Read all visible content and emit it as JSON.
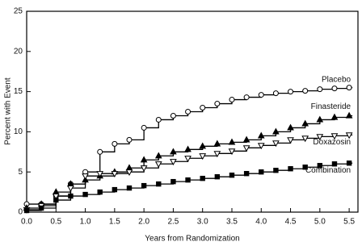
{
  "chart_data": {
    "type": "line",
    "step": true,
    "xlabel": "Years from Randomization",
    "ylabel": "Percent with Event",
    "xlim": [
      0,
      5.65
    ],
    "ylim": [
      0,
      25
    ],
    "xticks": [
      {
        "value": 0,
        "label": "0.0"
      },
      {
        "value": 0.5,
        "label": "0.5"
      },
      {
        "value": 1,
        "label": "1.0"
      },
      {
        "value": 1.5,
        "label": "1.5"
      },
      {
        "value": 2,
        "label": "2.0"
      },
      {
        "value": 2.5,
        "label": "2.5"
      },
      {
        "value": 3,
        "label": "3.0"
      },
      {
        "value": 3.5,
        "label": "3.5"
      },
      {
        "value": 4,
        "label": "4.0"
      },
      {
        "value": 4.5,
        "label": "4.5"
      },
      {
        "value": 5,
        "label": "5.0"
      },
      {
        "value": 5.5,
        "label": "5.5"
      }
    ],
    "yticks": [
      0,
      5,
      10,
      15,
      20,
      25
    ],
    "x": [
      0,
      0.25,
      0.5,
      0.75,
      1,
      1.25,
      1.5,
      1.75,
      2,
      2.25,
      2.5,
      2.75,
      3,
      3.25,
      3.5,
      3.75,
      4,
      4.25,
      4.5,
      4.75,
      5,
      5.25,
      5.5
    ],
    "series": [
      {
        "name": "Placebo",
        "color": "#000000",
        "marker": "circle-open",
        "values": [
          1,
          1,
          2,
          3.5,
          5,
          7.5,
          8.5,
          9,
          10.5,
          11.5,
          12,
          12.5,
          13,
          13.5,
          14,
          14.3,
          14.6,
          14.8,
          15,
          15.1,
          15.3,
          15.4,
          15.5
        ]
      },
      {
        "name": "Finasteride",
        "color": "#000000",
        "marker": "triangle-filled",
        "values": [
          0.5,
          1,
          2.5,
          3.5,
          4,
          4.5,
          5,
          5.5,
          6.5,
          7,
          7.5,
          7.8,
          8.2,
          8.5,
          8.7,
          9,
          9.5,
          10,
          10.5,
          11,
          11.5,
          11.8,
          12
        ]
      },
      {
        "name": "Doxazosin",
        "color": "#000000",
        "marker": "triangle-down-open",
        "values": [
          0.3,
          0.8,
          2,
          3,
          4.5,
          4.8,
          4.8,
          5,
          5.5,
          6,
          6.3,
          6.7,
          7,
          7.3,
          7.6,
          8,
          8.3,
          8.6,
          9,
          9.2,
          9.4,
          9.5,
          9.6
        ]
      },
      {
        "name": "Combination",
        "color": "#000000",
        "marker": "square-filled",
        "values": [
          0.2,
          0.5,
          1.5,
          2,
          2.2,
          2.5,
          2.8,
          3,
          3.3,
          3.5,
          3.8,
          4,
          4.2,
          4.4,
          4.6,
          4.8,
          5,
          5.2,
          5.4,
          5.6,
          5.8,
          6,
          6.1
        ]
      }
    ]
  }
}
